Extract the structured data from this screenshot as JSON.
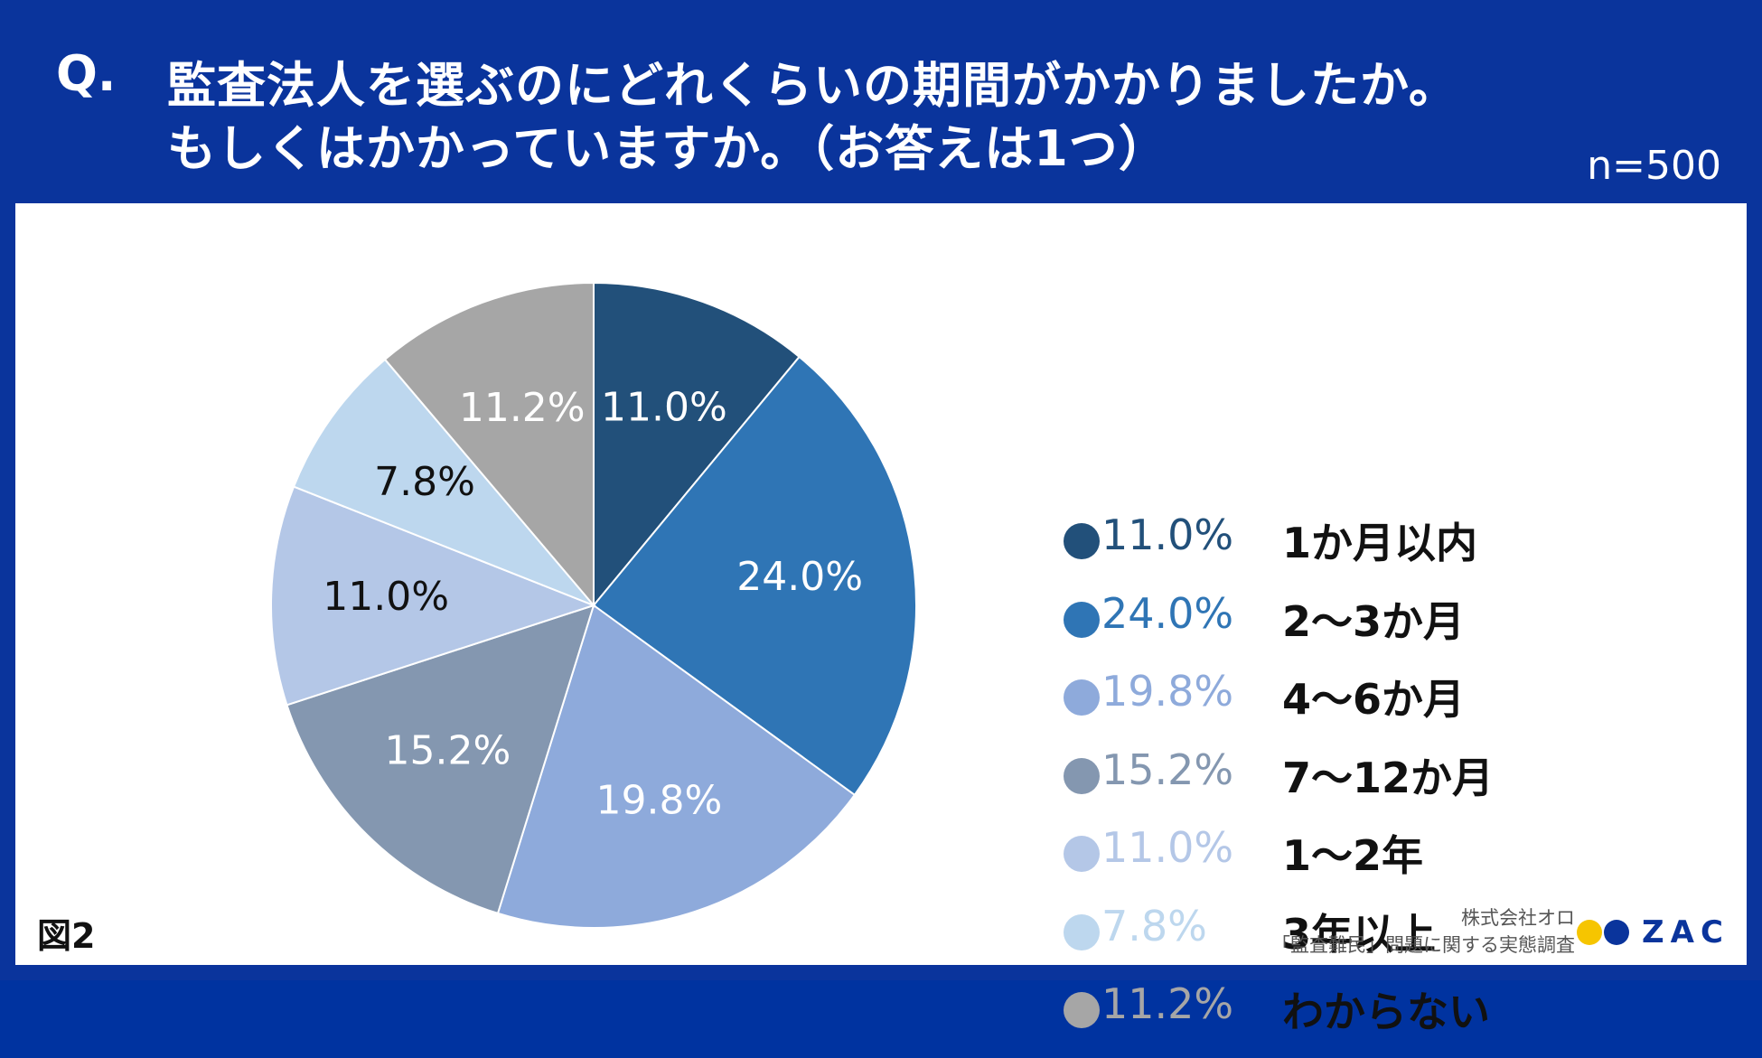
{
  "header": {
    "q_label": "Q.",
    "question_line1": "監査法人を選ぶのにどれくらいの期間がかかりましたか。",
    "question_line2": "もしくはかかっていますか。（お答えは1つ）",
    "sample_size": "n=500"
  },
  "figure_label": "図2",
  "source": {
    "company": "株式会社オロ",
    "survey": "「監査難民」問題に関する実態調査"
  },
  "logo": {
    "text": "ZAC",
    "dot_colors": [
      "#f6c500",
      "#0a349c"
    ]
  },
  "colors": {
    "header_bg": "#0a349c",
    "panel_bg": "#ffffff"
  },
  "chart_data": {
    "type": "pie",
    "title": "監査法人を選ぶのにどれくらいの期間がかかりましたか。もしくはかかっていますか。（お答えは1つ）",
    "start": "12 o'clock",
    "direction": "clockwise",
    "legend_position": "right",
    "slices": [
      {
        "category": "1か月以内",
        "value": 11.0,
        "label": "11.0%",
        "color": "#22507a",
        "label_color": "#ffffff",
        "legend_color": "#22507a"
      },
      {
        "category": "2〜3か月",
        "value": 24.0,
        "label": "24.0%",
        "color": "#2f75b5",
        "label_color": "#ffffff",
        "legend_color": "#2f75b5"
      },
      {
        "category": "4〜6か月",
        "value": 19.8,
        "label": "19.8%",
        "color": "#8eaadb",
        "label_color": "#ffffff",
        "legend_color": "#8eaadb"
      },
      {
        "category": "7〜12か月",
        "value": 15.2,
        "label": "15.2%",
        "color": "#8497b0",
        "label_color": "#ffffff",
        "legend_color": "#8497b0"
      },
      {
        "category": "1〜2年",
        "value": 11.0,
        "label": "11.0%",
        "color": "#b4c7e7",
        "label_color": "#111111",
        "legend_color": "#b4c7e7"
      },
      {
        "category": "3年以上",
        "value": 7.8,
        "label": "7.8%",
        "color": "#bdd7ee",
        "label_color": "#111111",
        "legend_color": "#bdd7ee"
      },
      {
        "category": "わからない",
        "value": 11.2,
        "label": "11.2%",
        "color": "#a6a6a6",
        "label_color": "#ffffff",
        "legend_color": "#a6a6a6"
      }
    ]
  }
}
